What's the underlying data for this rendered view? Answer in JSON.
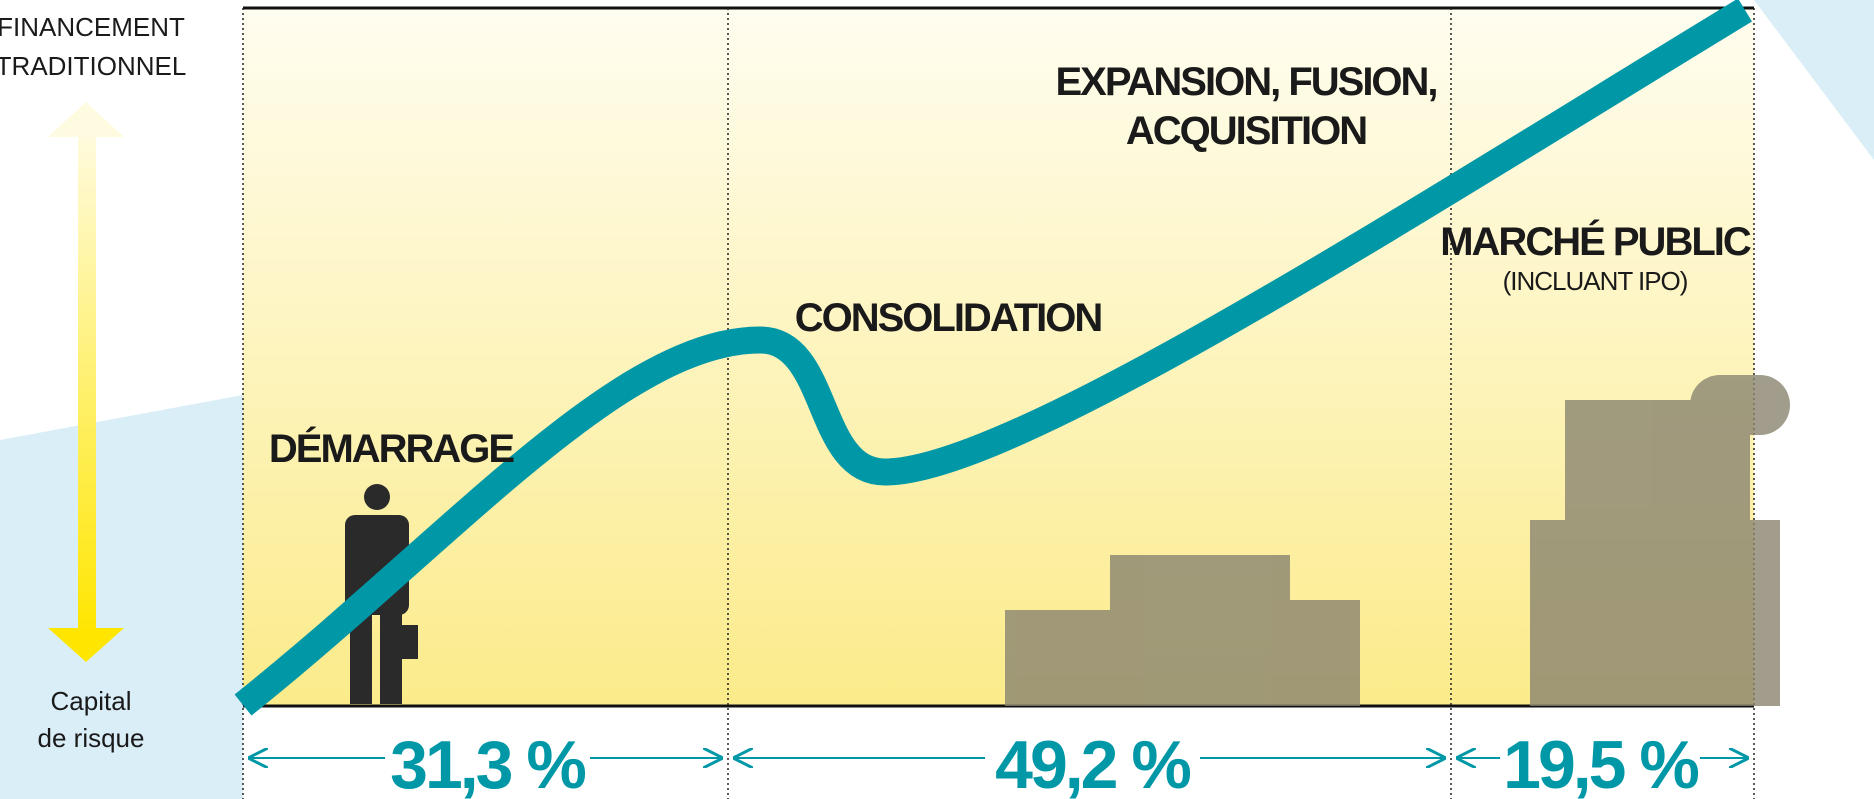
{
  "left_axis": {
    "top_label": [
      "FINANCEMENT",
      "TRADITIONNEL"
    ],
    "bottom_label": [
      "Capital",
      "de risque"
    ]
  },
  "stages": [
    {
      "label": [
        "DÉMARRAGE"
      ]
    },
    {
      "label": [
        "CONSOLIDATION"
      ]
    },
    {
      "label": [
        "EXPANSION, FUSION,",
        "ACQUISITION"
      ]
    },
    {
      "label": [
        "MARCHÉ PUBLIC"
      ],
      "sublabel": "(INCLUANT IPO)"
    }
  ],
  "shares": [
    "31,3 %",
    "49,2 %",
    "19,5 %"
  ]
}
